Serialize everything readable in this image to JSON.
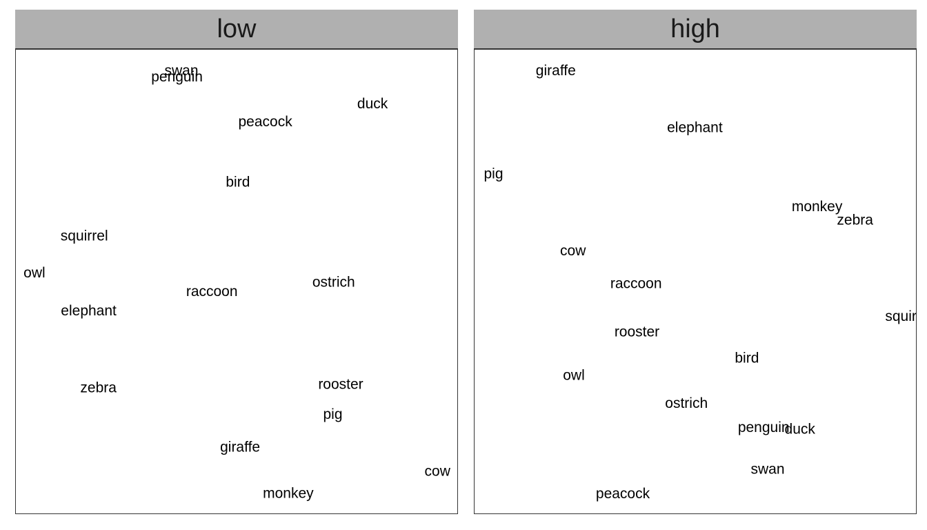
{
  "chart_data": [
    {
      "type": "scatter",
      "facet": "low",
      "title": "low",
      "xlim": [
        0,
        1
      ],
      "ylim": [
        0,
        1
      ],
      "grid": false,
      "points": [
        {
          "label": "swan",
          "x": 0.375,
          "y": 0.953
        },
        {
          "label": "penguin",
          "x": 0.365,
          "y": 0.94
        },
        {
          "label": "duck",
          "x": 0.808,
          "y": 0.882
        },
        {
          "label": "peacock",
          "x": 0.565,
          "y": 0.843
        },
        {
          "label": "bird",
          "x": 0.503,
          "y": 0.713
        },
        {
          "label": "squirrel",
          "x": 0.155,
          "y": 0.597
        },
        {
          "label": "owl",
          "x": 0.042,
          "y": 0.517
        },
        {
          "label": "raccoon",
          "x": 0.444,
          "y": 0.477
        },
        {
          "label": "ostrich",
          "x": 0.72,
          "y": 0.497
        },
        {
          "label": "elephant",
          "x": 0.165,
          "y": 0.435
        },
        {
          "label": "zebra",
          "x": 0.187,
          "y": 0.269
        },
        {
          "label": "rooster",
          "x": 0.736,
          "y": 0.277
        },
        {
          "label": "pig",
          "x": 0.718,
          "y": 0.212
        },
        {
          "label": "giraffe",
          "x": 0.508,
          "y": 0.141
        },
        {
          "label": "cow",
          "x": 0.955,
          "y": 0.089
        },
        {
          "label": "monkey",
          "x": 0.617,
          "y": 0.042
        }
      ]
    },
    {
      "type": "scatter",
      "facet": "high",
      "title": "high",
      "xlim": [
        0,
        1
      ],
      "ylim": [
        0,
        1
      ],
      "grid": false,
      "points": [
        {
          "label": "giraffe",
          "x": 0.184,
          "y": 0.953
        },
        {
          "label": "elephant",
          "x": 0.499,
          "y": 0.83
        },
        {
          "label": "pig",
          "x": 0.043,
          "y": 0.731
        },
        {
          "label": "monkey",
          "x": 0.776,
          "y": 0.66
        },
        {
          "label": "zebra",
          "x": 0.862,
          "y": 0.631
        },
        {
          "label": "cow",
          "x": 0.223,
          "y": 0.565
        },
        {
          "label": "raccoon",
          "x": 0.366,
          "y": 0.494
        },
        {
          "label": "squirrel",
          "x": 0.984,
          "y": 0.423
        },
        {
          "label": "rooster",
          "x": 0.368,
          "y": 0.39
        },
        {
          "label": "bird",
          "x": 0.617,
          "y": 0.333
        },
        {
          "label": "owl",
          "x": 0.225,
          "y": 0.296
        },
        {
          "label": "ostrich",
          "x": 0.48,
          "y": 0.236
        },
        {
          "label": "penguin",
          "x": 0.655,
          "y": 0.184
        },
        {
          "label": "duck",
          "x": 0.737,
          "y": 0.18
        },
        {
          "label": "swan",
          "x": 0.664,
          "y": 0.094
        },
        {
          "label": "peacock",
          "x": 0.336,
          "y": 0.041
        }
      ]
    }
  ]
}
